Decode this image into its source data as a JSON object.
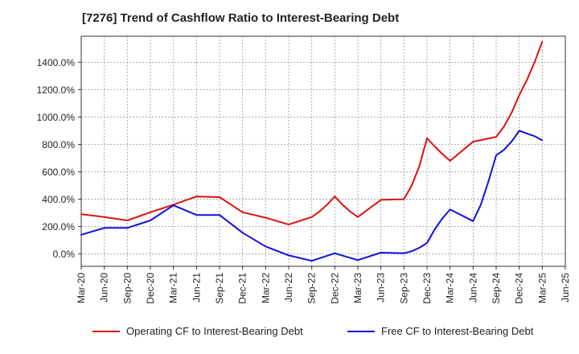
{
  "chart_data": {
    "type": "line",
    "title": "[7276]  Trend of Cashflow Ratio to Interest-Bearing Debt",
    "xlabel": "",
    "ylabel": "",
    "ylim": [
      -90,
      1590
    ],
    "yticks": [
      0,
      200,
      400,
      600,
      800,
      1000,
      1200,
      1400
    ],
    "ytick_labels": [
      "0.0%",
      "200.0%",
      "400.0%",
      "600.0%",
      "800.0%",
      "1000.0%",
      "1200.0%",
      "1400.0%"
    ],
    "x_tick_labels": [
      "Mar-20",
      "Jun-20",
      "Sep-20",
      "Dec-20",
      "Mar-21",
      "Jun-21",
      "Sep-21",
      "Dec-21",
      "Mar-22",
      "Jun-22",
      "Sep-22",
      "Dec-22",
      "Mar-23",
      "Jun-23",
      "Sep-23",
      "Dec-23",
      "Mar-24",
      "Jun-24",
      "Sep-24",
      "Dec-24",
      "Mar-25",
      "Jun-25"
    ],
    "grid": true,
    "legend_position": "bottom",
    "series": [
      {
        "name": "Operating CF to Interest-Bearing Debt",
        "color": "#dd1111",
        "x": [
          "Mar-20",
          "Jun-20",
          "Sep-20",
          "Dec-20",
          "Mar-21",
          "Jun-21",
          "Sep-21",
          "Dec-21",
          "Mar-22",
          "Jun-22",
          "Sep-22",
          "Oct-22",
          "Nov-22",
          "Dec-22",
          "Jan-23",
          "Feb-23",
          "Mar-23",
          "Jun-23",
          "Sep-23",
          "Oct-23",
          "Nov-23",
          "Dec-23",
          "Jan-24",
          "Feb-24",
          "Mar-24",
          "Jun-24",
          "Sep-24",
          "Oct-24",
          "Nov-24",
          "Dec-24",
          "Jan-25",
          "Feb-25",
          "Mar-25"
        ],
        "values": [
          290,
          270,
          245,
          305,
          360,
          420,
          415,
          305,
          265,
          215,
          270,
          310,
          360,
          420,
          360,
          310,
          270,
          395,
          400,
          500,
          640,
          845,
          785,
          730,
          680,
          820,
          855,
          930,
          1030,
          1160,
          1270,
          1400,
          1550
        ]
      },
      {
        "name": "Free CF to Interest-Bearing Debt",
        "color": "#1111dd",
        "x": [
          "Mar-20",
          "Jun-20",
          "Sep-20",
          "Dec-20",
          "Mar-21",
          "Jun-21",
          "Sep-21",
          "Dec-21",
          "Mar-22",
          "Jun-22",
          "Sep-22",
          "Dec-22",
          "Mar-23",
          "Jun-23",
          "Sep-23",
          "Oct-23",
          "Nov-23",
          "Dec-23",
          "Jan-24",
          "Feb-24",
          "Mar-24",
          "Jun-24",
          "Jul-24",
          "Aug-24",
          "Sep-24",
          "Oct-24",
          "Nov-24",
          "Dec-24",
          "Jan-25",
          "Feb-25",
          "Mar-25"
        ],
        "values": [
          140,
          190,
          190,
          245,
          355,
          285,
          285,
          155,
          55,
          -10,
          -50,
          5,
          -45,
          10,
          5,
          20,
          45,
          80,
          180,
          260,
          325,
          240,
          360,
          530,
          720,
          760,
          820,
          900,
          880,
          860,
          830
        ]
      }
    ]
  }
}
